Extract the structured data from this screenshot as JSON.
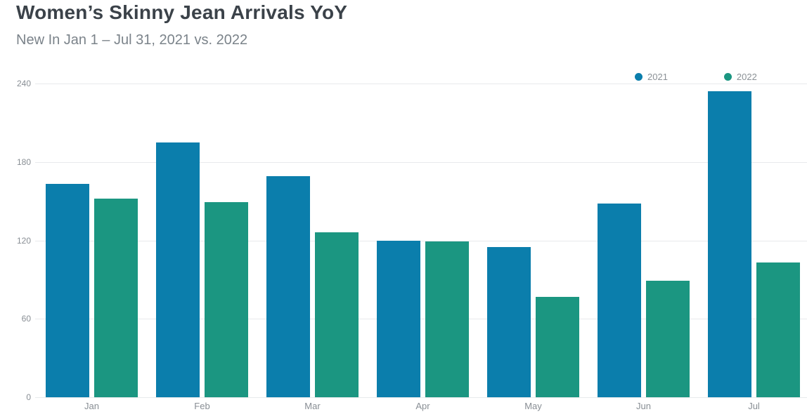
{
  "header": {
    "title": "Women’s Skinny Jean Arrivals YoY",
    "subtitle": "New In Jan 1 – Jul 31, 2021 vs. 2022"
  },
  "legend": {
    "position": "top-right",
    "items": [
      {
        "label": "2021",
        "color": "#0b7eac"
      },
      {
        "label": "2022",
        "color": "#1b9681"
      }
    ]
  },
  "chart_data": {
    "type": "bar",
    "title": "Women’s Skinny Jean Arrivals YoY",
    "subtitle": "New In Jan 1 – Jul 31, 2021 vs. 2022",
    "categories": [
      "Jan",
      "Feb",
      "Mar",
      "Apr",
      "May",
      "Jun",
      "Jul"
    ],
    "series": [
      {
        "name": "2021",
        "color": "#0b7eac",
        "values": [
          163,
          195,
          169,
          120,
          115,
          148,
          234
        ]
      },
      {
        "name": "2022",
        "color": "#1b9681",
        "values": [
          152,
          149,
          126,
          119,
          77,
          89,
          103
        ]
      }
    ],
    "xlabel": "",
    "ylabel": "",
    "ylim": [
      0,
      240
    ],
    "yticks": [
      0,
      60,
      120,
      180,
      240
    ],
    "grid": true,
    "legend_position": "top-right"
  },
  "colors": {
    "background": "#ffffff",
    "title_text": "#3b4249",
    "subtitle_text": "#7b838a",
    "axis_text": "#888e94",
    "gridline": "#e8eaec",
    "series_2021": "#0b7eac",
    "series_2022": "#1b9681"
  }
}
